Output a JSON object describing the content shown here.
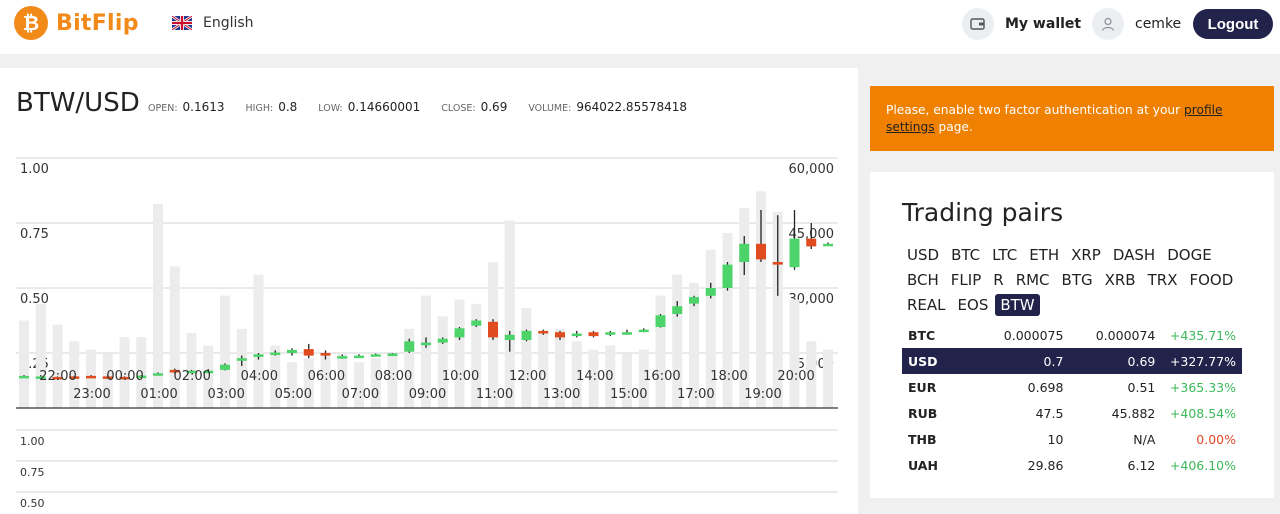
{
  "header": {
    "logo_symbol": "₿",
    "logo_text": "BitFlip",
    "language": "English",
    "wallet_label": "My wallet",
    "username": "cemke",
    "logout_label": "Logout"
  },
  "market": {
    "pair": "BTW/USD",
    "open_label": "OPEN:",
    "open": "0.1613",
    "high_label": "HIGH:",
    "high": "0.8",
    "low_label": "LOW:",
    "low": "0.14660001",
    "close_label": "CLOSE:",
    "close": "0.69",
    "volume_label": "VOLUME:",
    "volume": "964022.85578418"
  },
  "alert": {
    "text_before": "Please, enable two factor authentication at your ",
    "link_text": "profile settings",
    "text_after": " page."
  },
  "trading_pairs": {
    "title": "Trading pairs",
    "tabs": [
      "USD",
      "BTC",
      "LTC",
      "ETH",
      "XRP",
      "DASH",
      "DOGE",
      "BCH",
      "FLIP",
      "R",
      "RMC",
      "BTG",
      "XRB",
      "TRX",
      "FOOD",
      "REAL",
      "EOS",
      "BTW"
    ],
    "active_tab": "BTW",
    "rows": [
      {
        "currency": "BTC",
        "v1": "0.000075",
        "v2": "0.000074",
        "change": "+435.71%",
        "trend": "up"
      },
      {
        "currency": "USD",
        "v1": "0.7",
        "v2": "0.69",
        "change": "+327.77%",
        "trend": "up",
        "selected": true
      },
      {
        "currency": "EUR",
        "v1": "0.698",
        "v2": "0.51",
        "change": "+365.33%",
        "trend": "up"
      },
      {
        "currency": "RUB",
        "v1": "47.5",
        "v2": "45.882",
        "change": "+408.54%",
        "trend": "up"
      },
      {
        "currency": "THB",
        "v1": "10",
        "v2": "N/A",
        "change": "0.00%",
        "trend": "flat"
      },
      {
        "currency": "UAH",
        "v1": "29.86",
        "v2": "6.12",
        "change": "+406.10%",
        "trend": "up"
      }
    ]
  },
  "colors": {
    "accent": "#f28a1a",
    "navy": "#22234a",
    "alert": "#f08000",
    "up": "#4cd36a",
    "down": "#e04b1f",
    "volume": "#ececec"
  },
  "chart_data": {
    "type": "candlestick",
    "price_axis": {
      "ylim": [
        0,
        1.0
      ],
      "ticks": [
        "1.00",
        "0.75",
        "0.50",
        "0.25"
      ]
    },
    "volume_axis": {
      "ylim": [
        0,
        60000
      ],
      "ticks": [
        "60,000",
        "45,000",
        "30,000",
        "15,000"
      ]
    },
    "lower_axis_ticks": [
      "1.00",
      "0.75",
      "0.50"
    ],
    "time_labels_upper": [
      "22:00",
      "00:00",
      "02:00",
      "04:00",
      "06:00",
      "08:00",
      "10:00",
      "12:00",
      "14:00",
      "16:00",
      "18:00",
      "20:00"
    ],
    "time_labels_lower": [
      "23:00",
      "01:00",
      "03:00",
      "05:00",
      "07:00",
      "09:00",
      "11:00",
      "13:00",
      "15:00",
      "17:00",
      "19:00"
    ],
    "candles": [
      {
        "o": 0.16,
        "h": 0.165,
        "l": 0.155,
        "c": 0.162,
        "v": 21000
      },
      {
        "o": 0.16,
        "h": 0.165,
        "l": 0.155,
        "c": 0.16,
        "v": 25000
      },
      {
        "o": 0.158,
        "h": 0.16,
        "l": 0.152,
        "c": 0.155,
        "v": 20000
      },
      {
        "o": 0.16,
        "h": 0.162,
        "l": 0.155,
        "c": 0.158,
        "v": 16000
      },
      {
        "o": 0.162,
        "h": 0.165,
        "l": 0.158,
        "c": 0.16,
        "v": 14000
      },
      {
        "o": 0.16,
        "h": 0.165,
        "l": 0.155,
        "c": 0.158,
        "v": 13000
      },
      {
        "o": 0.158,
        "h": 0.16,
        "l": 0.155,
        "c": 0.157,
        "v": 17000
      },
      {
        "o": 0.158,
        "h": 0.165,
        "l": 0.156,
        "c": 0.163,
        "v": 17000
      },
      {
        "o": 0.17,
        "h": 0.175,
        "l": 0.168,
        "c": 0.172,
        "v": 49000
      },
      {
        "o": 0.185,
        "h": 0.19,
        "l": 0.172,
        "c": 0.175,
        "v": 34000
      },
      {
        "o": 0.18,
        "h": 0.185,
        "l": 0.176,
        "c": 0.182,
        "v": 18000
      },
      {
        "o": 0.182,
        "h": 0.188,
        "l": 0.178,
        "c": 0.182,
        "v": 15000
      },
      {
        "o": 0.185,
        "h": 0.21,
        "l": 0.183,
        "c": 0.205,
        "v": 27000
      },
      {
        "o": 0.22,
        "h": 0.24,
        "l": 0.2,
        "c": 0.23,
        "v": 19000
      },
      {
        "o": 0.235,
        "h": 0.25,
        "l": 0.225,
        "c": 0.245,
        "v": 32000
      },
      {
        "o": 0.25,
        "h": 0.26,
        "l": 0.24,
        "c": 0.252,
        "v": 15000
      },
      {
        "o": 0.25,
        "h": 0.268,
        "l": 0.24,
        "c": 0.262,
        "v": 11000
      },
      {
        "o": 0.265,
        "h": 0.285,
        "l": 0.23,
        "c": 0.24,
        "v": 12000
      },
      {
        "o": 0.25,
        "h": 0.26,
        "l": 0.225,
        "c": 0.24,
        "v": 13000
      },
      {
        "o": 0.232,
        "h": 0.244,
        "l": 0.228,
        "c": 0.238,
        "v": 13000
      },
      {
        "o": 0.238,
        "h": 0.245,
        "l": 0.232,
        "c": 0.24,
        "v": 11000
      },
      {
        "o": 0.24,
        "h": 0.248,
        "l": 0.238,
        "c": 0.245,
        "v": 12000
      },
      {
        "o": 0.242,
        "h": 0.25,
        "l": 0.24,
        "c": 0.248,
        "v": 13000
      },
      {
        "o": 0.255,
        "h": 0.305,
        "l": 0.25,
        "c": 0.295,
        "v": 19000
      },
      {
        "o": 0.28,
        "h": 0.31,
        "l": 0.27,
        "c": 0.29,
        "v": 27000
      },
      {
        "o": 0.29,
        "h": 0.31,
        "l": 0.285,
        "c": 0.305,
        "v": 22000
      },
      {
        "o": 0.31,
        "h": 0.35,
        "l": 0.3,
        "c": 0.345,
        "v": 26000
      },
      {
        "o": 0.355,
        "h": 0.38,
        "l": 0.35,
        "c": 0.375,
        "v": 25000
      },
      {
        "o": 0.37,
        "h": 0.38,
        "l": 0.3,
        "c": 0.31,
        "v": 35000
      },
      {
        "o": 0.3,
        "h": 0.335,
        "l": 0.255,
        "c": 0.32,
        "v": 45000
      },
      {
        "o": 0.3,
        "h": 0.34,
        "l": 0.295,
        "c": 0.335,
        "v": 24000
      },
      {
        "o": 0.335,
        "h": 0.34,
        "l": 0.32,
        "c": 0.325,
        "v": 18000
      },
      {
        "o": 0.33,
        "h": 0.335,
        "l": 0.3,
        "c": 0.31,
        "v": 19000
      },
      {
        "o": 0.315,
        "h": 0.335,
        "l": 0.31,
        "c": 0.325,
        "v": 16000
      },
      {
        "o": 0.33,
        "h": 0.335,
        "l": 0.31,
        "c": 0.315,
        "v": 14000
      },
      {
        "o": 0.32,
        "h": 0.335,
        "l": 0.315,
        "c": 0.33,
        "v": 15000
      },
      {
        "o": 0.325,
        "h": 0.34,
        "l": 0.32,
        "c": 0.33,
        "v": 13000
      },
      {
        "o": 0.335,
        "h": 0.345,
        "l": 0.33,
        "c": 0.34,
        "v": 14000
      },
      {
        "o": 0.35,
        "h": 0.4,
        "l": 0.348,
        "c": 0.395,
        "v": 27000
      },
      {
        "o": 0.4,
        "h": 0.45,
        "l": 0.39,
        "c": 0.43,
        "v": 32000
      },
      {
        "o": 0.44,
        "h": 0.47,
        "l": 0.43,
        "c": 0.465,
        "v": 30000
      },
      {
        "o": 0.47,
        "h": 0.52,
        "l": 0.46,
        "c": 0.5,
        "v": 38000
      },
      {
        "o": 0.5,
        "h": 0.6,
        "l": 0.49,
        "c": 0.59,
        "v": 42000
      },
      {
        "o": 0.6,
        "h": 0.7,
        "l": 0.55,
        "c": 0.67,
        "v": 48000
      },
      {
        "o": 0.67,
        "h": 0.8,
        "l": 0.6,
        "c": 0.61,
        "v": 52000
      },
      {
        "o": 0.6,
        "h": 0.78,
        "l": 0.47,
        "c": 0.59,
        "v": 47000
      },
      {
        "o": 0.58,
        "h": 0.8,
        "l": 0.57,
        "c": 0.69,
        "v": 26000
      },
      {
        "o": 0.69,
        "h": 0.75,
        "l": 0.65,
        "c": 0.66,
        "v": 16000
      },
      {
        "o": 0.67,
        "h": 0.675,
        "l": 0.665,
        "c": 0.67,
        "v": 14000
      }
    ]
  }
}
